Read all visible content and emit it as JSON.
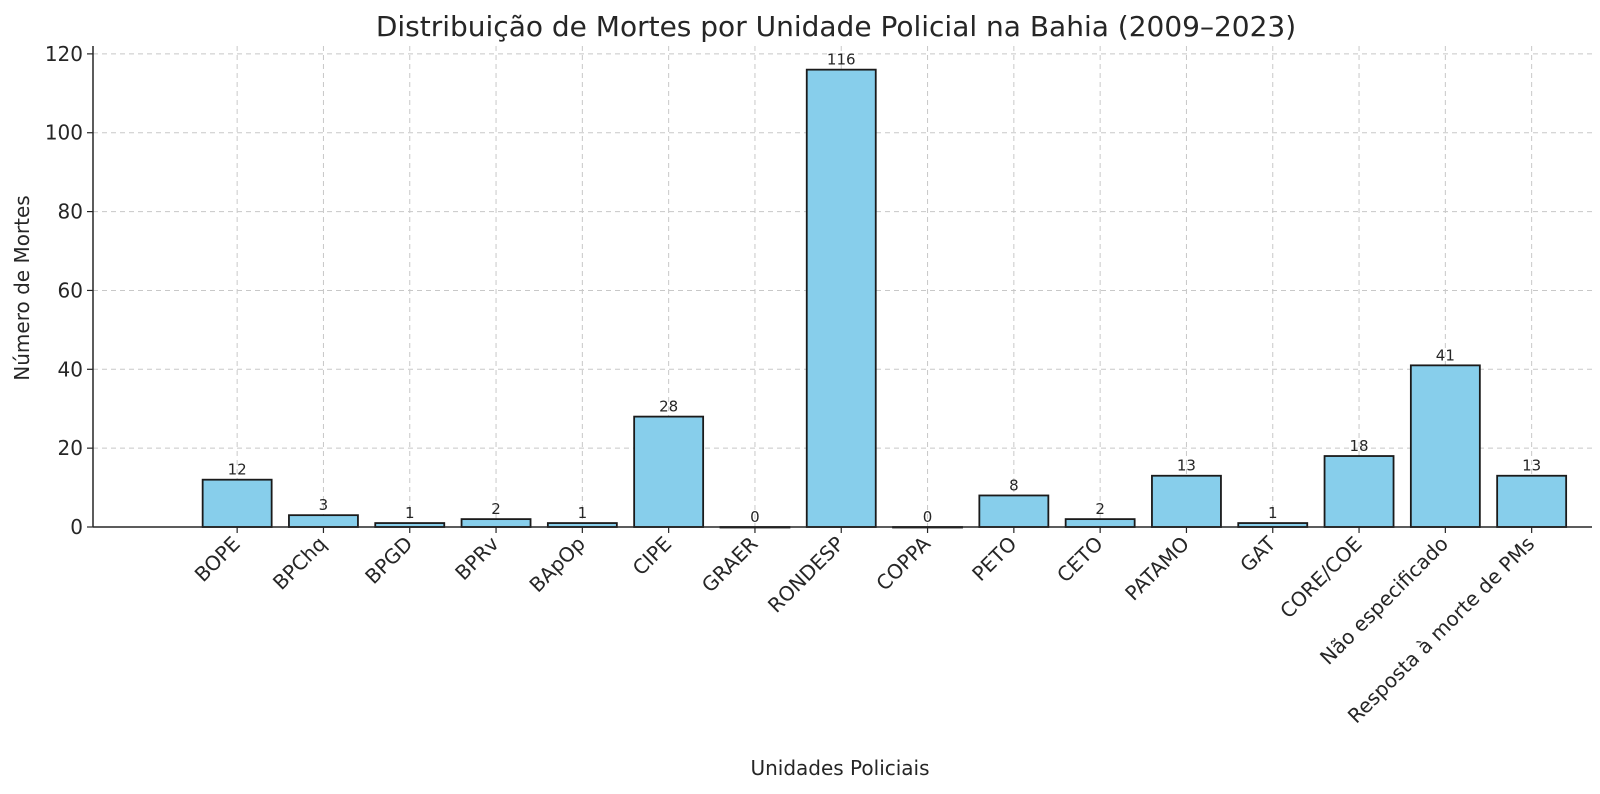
{
  "chart_data": {
    "type": "bar",
    "title": "Distribuição de Mortes por Unidade Policial na Bahia (2009–2023)",
    "xlabel": "Unidades Policiais",
    "ylabel": "Número de Mortes",
    "categories": [
      "BOPE",
      "BPChq",
      "BPGD",
      "BPRv",
      "BApOp",
      "CIPE",
      "GRAER",
      "RONDESP",
      "COPPA",
      "PETO",
      "CETO",
      "PATAMO",
      "GAT",
      "CORE/COE",
      "Não especificado",
      "Resposta à morte de PMs"
    ],
    "values": [
      12,
      3,
      1,
      2,
      1,
      28,
      0,
      116,
      0,
      8,
      2,
      13,
      1,
      18,
      41,
      13
    ],
    "ylim": [
      0,
      122
    ],
    "yticks": [
      0,
      20,
      40,
      60,
      80,
      100,
      120
    ],
    "grid": true,
    "bar_color": "#87CEEB",
    "bar_edge_color": "#1a1a1a",
    "data_labels": true
  }
}
